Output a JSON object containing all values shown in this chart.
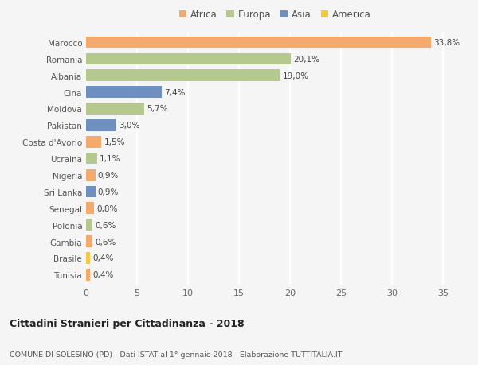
{
  "countries": [
    "Marocco",
    "Romania",
    "Albania",
    "Cina",
    "Moldova",
    "Pakistan",
    "Costa d'Avorio",
    "Ucraina",
    "Nigeria",
    "Sri Lanka",
    "Senegal",
    "Polonia",
    "Gambia",
    "Brasile",
    "Tunisia"
  ],
  "values": [
    33.8,
    20.1,
    19.0,
    7.4,
    5.7,
    3.0,
    1.5,
    1.1,
    0.9,
    0.9,
    0.8,
    0.6,
    0.6,
    0.4,
    0.4
  ],
  "labels": [
    "33,8%",
    "20,1%",
    "19,0%",
    "7,4%",
    "5,7%",
    "3,0%",
    "1,5%",
    "1,1%",
    "0,9%",
    "0,9%",
    "0,8%",
    "0,6%",
    "0,6%",
    "0,4%",
    "0,4%"
  ],
  "continents": [
    "Africa",
    "Europa",
    "Europa",
    "Asia",
    "Europa",
    "Asia",
    "Africa",
    "Europa",
    "Africa",
    "Asia",
    "Africa",
    "Europa",
    "Africa",
    "America",
    "Africa"
  ],
  "continent_colors": {
    "Africa": "#F4A96D",
    "Europa": "#B5C98E",
    "Asia": "#6E8FBF",
    "America": "#F5C842"
  },
  "legend_order": [
    "Africa",
    "Europa",
    "Asia",
    "America"
  ],
  "xlim": [
    0,
    37
  ],
  "xticks": [
    0,
    5,
    10,
    15,
    20,
    25,
    30,
    35
  ],
  "title_main": "Cittadini Stranieri per Cittadinanza - 2018",
  "title_sub": "COMUNE DI SOLESINO (PD) - Dati ISTAT al 1° gennaio 2018 - Elaborazione TUTTITALIA.IT",
  "bg_color": "#f5f5f5",
  "bar_height": 0.7,
  "label_fontsize": 7.5,
  "ytick_fontsize": 7.5,
  "xtick_fontsize": 8.0
}
